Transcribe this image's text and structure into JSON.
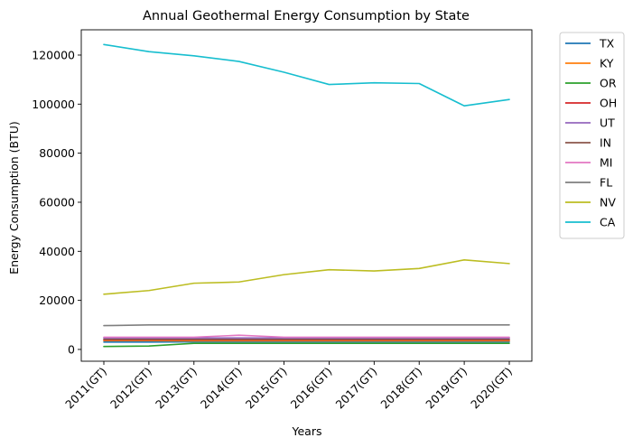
{
  "chart_data": {
    "type": "line",
    "title": "Annual Geothermal Energy Consumption by State",
    "xlabel": "Years",
    "ylabel": "Energy Consumption (BTU)",
    "x": [
      "2011(GT)",
      "2012(GT)",
      "2013(GT)",
      "2014(GT)",
      "2015(GT)",
      "2016(GT)",
      "2017(GT)",
      "2018(GT)",
      "2019(GT)",
      "2020(GT)"
    ],
    "ylim": [
      -4800,
      130300
    ],
    "yticks": [
      "0",
      "20000",
      "40000",
      "60000",
      "80000",
      "100000",
      "120000"
    ],
    "ytick_values": [
      0,
      20000,
      40000,
      60000,
      80000,
      100000,
      120000
    ],
    "grid": false,
    "legend_position": "outside-top-right",
    "series": [
      {
        "name": "TX",
        "color": "#1f77b4",
        "values": [
          3000,
          3000,
          3100,
          3100,
          3100,
          3100,
          3100,
          3100,
          3100,
          3100
        ]
      },
      {
        "name": "KY",
        "color": "#ff7f0e",
        "values": [
          3600,
          3600,
          3500,
          3500,
          3500,
          3500,
          3500,
          3500,
          3500,
          3500
        ]
      },
      {
        "name": "OR",
        "color": "#2ca02c",
        "values": [
          1200,
          1400,
          2500,
          2500,
          2500,
          2500,
          2500,
          2500,
          2500,
          2500
        ]
      },
      {
        "name": "OH",
        "color": "#d62728",
        "values": [
          3900,
          3900,
          3900,
          3900,
          3900,
          3900,
          3900,
          3900,
          3900,
          3900
        ]
      },
      {
        "name": "UT",
        "color": "#9467bd",
        "values": [
          4700,
          4700,
          4700,
          4700,
          4700,
          4700,
          4700,
          4700,
          4700,
          4700
        ]
      },
      {
        "name": "IN",
        "color": "#8c564b",
        "values": [
          4100,
          4100,
          4100,
          4100,
          4100,
          4100,
          4100,
          4100,
          4100,
          4100
        ]
      },
      {
        "name": "MI",
        "color": "#e377c2",
        "values": [
          5000,
          5000,
          5000,
          5800,
          5000,
          5000,
          5000,
          5000,
          5000,
          5000
        ]
      },
      {
        "name": "FL",
        "color": "#7f7f7f",
        "values": [
          9700,
          10000,
          10000,
          10000,
          10000,
          10000,
          10000,
          10000,
          10000,
          10000
        ]
      },
      {
        "name": "NV",
        "color": "#bcbd22",
        "values": [
          22500,
          24000,
          27000,
          27500,
          30500,
          32500,
          32000,
          33000,
          36500,
          35000
        ]
      },
      {
        "name": "CA",
        "color": "#17becf",
        "values": [
          124300,
          121400,
          119700,
          117400,
          113000,
          108000,
          108700,
          108400,
          99300,
          101900
        ]
      }
    ]
  }
}
